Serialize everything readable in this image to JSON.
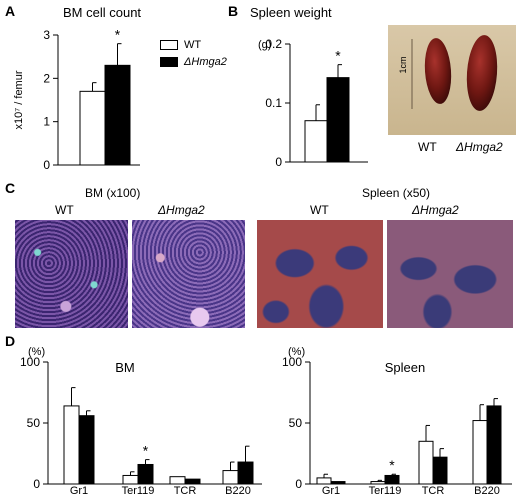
{
  "labels": {
    "A": "A",
    "B": "B",
    "C": "C",
    "D": "D"
  },
  "colors": {
    "wt": "#ffffff",
    "mut": "#000000",
    "axis": "#000000"
  },
  "legend": {
    "wt": "WT",
    "mut": "ΔHmga2"
  },
  "panelA": {
    "title": "BM cell count",
    "ylabel": "x10⁷ / femur"
  },
  "panelB": {
    "title": "Spleen weight",
    "unit": "(g)"
  },
  "spleenPhoto": {
    "scale": "1cm",
    "wt": "WT",
    "mut": "ΔHmga2"
  },
  "panelC": {
    "bm_title": "BM (x100)",
    "spleen_title": "Spleen (x50)",
    "bm_wt": "WT",
    "bm_mut": "ΔHmga2",
    "sp_wt": "WT",
    "sp_mut": "ΔHmga2"
  },
  "panelD": {
    "bm_title": "BM",
    "spleen_title": "Spleen",
    "bm_unit": "(%)",
    "spleen_unit": "(%)"
  },
  "chart_data": [
    {
      "id": "A",
      "type": "bar",
      "title": "BM cell count",
      "ylabel": "x10⁷ / femur",
      "ylim": [
        0,
        3
      ],
      "yticks": [
        0,
        1,
        2,
        3
      ],
      "categories": [
        ""
      ],
      "series": [
        {
          "name": "WT",
          "values": [
            1.7
          ],
          "errors": [
            0.2
          ]
        },
        {
          "name": "ΔHmga2",
          "values": [
            2.3
          ],
          "errors": [
            0.5
          ]
        }
      ],
      "annotations": [
        {
          "series": 1,
          "category": 0,
          "text": "*"
        }
      ]
    },
    {
      "id": "B",
      "type": "bar",
      "title": "Spleen weight",
      "ylabel": "(g)",
      "ylim": [
        0,
        0.2
      ],
      "yticks": [
        0,
        0.1,
        0.2
      ],
      "categories": [
        ""
      ],
      "series": [
        {
          "name": "WT",
          "values": [
            0.07
          ],
          "errors": [
            0.027
          ]
        },
        {
          "name": "ΔHmga2",
          "values": [
            0.143
          ],
          "errors": [
            0.022
          ]
        }
      ],
      "annotations": [
        {
          "series": 1,
          "category": 0,
          "text": "*"
        }
      ]
    },
    {
      "id": "D-BM",
      "type": "bar",
      "title": "BM",
      "ylabel": "(%)",
      "ylim": [
        0,
        100
      ],
      "yticks": [
        0,
        50,
        100
      ],
      "categories": [
        "Gr1",
        "Ter119",
        "TCR",
        "B220"
      ],
      "series": [
        {
          "name": "WT",
          "values": [
            64,
            7,
            6,
            11
          ],
          "errors": [
            15,
            3,
            0,
            7
          ]
        },
        {
          "name": "ΔHmga2",
          "values": [
            56,
            16,
            4,
            18
          ],
          "errors": [
            4,
            4,
            0,
            13
          ]
        }
      ],
      "annotations": [
        {
          "series": 1,
          "category": 1,
          "text": "*"
        }
      ]
    },
    {
      "id": "D-Spleen",
      "type": "bar",
      "title": "Spleen",
      "ylabel": "(%)",
      "ylim": [
        0,
        100
      ],
      "yticks": [
        0,
        50,
        100
      ],
      "categories": [
        "Gr1",
        "Ter119",
        "TCR",
        "B220"
      ],
      "series": [
        {
          "name": "WT",
          "values": [
            5,
            2,
            35,
            52
          ],
          "errors": [
            3,
            1,
            13,
            13
          ]
        },
        {
          "name": "ΔHmga2",
          "values": [
            2,
            7,
            22,
            64
          ],
          "errors": [
            0,
            1,
            7,
            6
          ]
        }
      ],
      "annotations": [
        {
          "series": 1,
          "category": 1,
          "text": "*"
        }
      ]
    }
  ]
}
